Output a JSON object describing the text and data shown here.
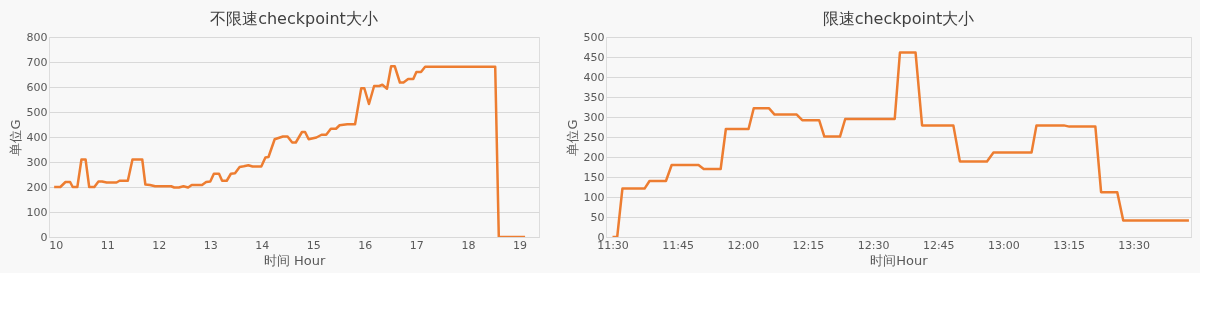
{
  "chart_data": [
    {
      "type": "line",
      "title": "不限速checkpoint大小",
      "xlabel": "时间 Hour",
      "ylabel": "单位G",
      "color": "#ed7d31",
      "grid": "y",
      "marker": "none",
      "line_style": "solid",
      "xlim": [
        9.87,
        19.38
      ],
      "xticks": [
        10,
        11,
        12,
        13,
        14,
        15,
        16,
        17,
        18,
        19
      ],
      "ylim": [
        0,
        800
      ],
      "yticks": [
        0,
        100,
        200,
        300,
        400,
        500,
        600,
        700,
        800
      ],
      "x": [
        9.97,
        10.09,
        10.19,
        10.28,
        10.33,
        10.42,
        10.5,
        10.58,
        10.65,
        10.75,
        10.83,
        10.9,
        10.99,
        11.18,
        11.24,
        11.4,
        11.49,
        11.68,
        11.74,
        11.83,
        11.93,
        12.24,
        12.3,
        12.39,
        12.48,
        12.57,
        12.64,
        12.84,
        12.92,
        13.0,
        13.07,
        13.17,
        13.23,
        13.32,
        13.4,
        13.48,
        13.57,
        13.65,
        13.74,
        13.82,
        13.99,
        14.07,
        14.13,
        14.25,
        14.41,
        14.5,
        14.59,
        14.66,
        14.78,
        14.84,
        14.91,
        15.06,
        15.16,
        15.25,
        15.34,
        15.44,
        15.51,
        15.66,
        15.81,
        15.93,
        15.99,
        16.08,
        16.18,
        16.28,
        16.34,
        16.43,
        16.51,
        16.58,
        16.68,
        16.75,
        16.84,
        16.94,
        17.0,
        17.09,
        17.17,
        18.53,
        18.6,
        19.11
      ],
      "values": [
        200,
        200,
        220,
        220,
        200,
        200,
        310,
        310,
        200,
        200,
        222,
        222,
        218,
        218,
        225,
        225,
        310,
        310,
        210,
        208,
        203,
        203,
        198,
        198,
        203,
        198,
        208,
        208,
        220,
        222,
        253,
        253,
        225,
        225,
        253,
        255,
        280,
        283,
        287,
        282,
        282,
        318,
        320,
        391,
        402,
        402,
        378,
        378,
        420,
        420,
        391,
        398,
        409,
        409,
        433,
        433,
        447,
        451,
        451,
        595,
        595,
        532,
        604,
        604,
        609,
        593,
        683,
        683,
        618,
        618,
        632,
        632,
        660,
        660,
        681,
        681,
        0,
        0
      ]
    },
    {
      "type": "line",
      "title": "限速checkpoint大小",
      "xlabel": "时间Hour",
      "ylabel": "单位G",
      "color": "#ed7d31",
      "grid": "y",
      "marker": "none",
      "line_style": "solid",
      "xlim": [
        11.475,
        13.72
      ],
      "xticks": [
        {
          "value": 11.5,
          "label": "11:30"
        },
        {
          "value": 11.75,
          "label": "11:45"
        },
        {
          "value": 12.0,
          "label": "12:00"
        },
        {
          "value": 12.25,
          "label": "12:15"
        },
        {
          "value": 12.5,
          "label": "12:30"
        },
        {
          "value": 12.75,
          "label": "12:45"
        },
        {
          "value": 13.0,
          "label": "13:00"
        },
        {
          "value": 13.25,
          "label": "13:15"
        },
        {
          "value": 13.5,
          "label": "13:30"
        }
      ],
      "ylim": [
        0,
        500
      ],
      "yticks": [
        0,
        50,
        100,
        150,
        200,
        250,
        300,
        350,
        400,
        450,
        500
      ],
      "x": [
        11.5,
        11.518,
        11.538,
        11.623,
        11.642,
        11.705,
        11.727,
        11.83,
        11.85,
        11.915,
        11.935,
        12.022,
        12.042,
        12.1,
        12.122,
        12.207,
        12.228,
        12.293,
        12.313,
        12.373,
        12.393,
        12.533,
        12.583,
        12.603,
        12.663,
        12.688,
        12.808,
        12.833,
        12.937,
        12.962,
        13.108,
        13.127,
        13.232,
        13.253,
        13.353,
        13.375,
        13.437,
        13.46,
        13.712
      ],
      "values": [
        0,
        0,
        121,
        121,
        140,
        140,
        180,
        180,
        170,
        170,
        270,
        270,
        322,
        322,
        306,
        306,
        292,
        292,
        251,
        251,
        295,
        295,
        295,
        461,
        461,
        279,
        279,
        189,
        189,
        211,
        211,
        279,
        279,
        276,
        276,
        112,
        112,
        41,
        41
      ]
    }
  ]
}
